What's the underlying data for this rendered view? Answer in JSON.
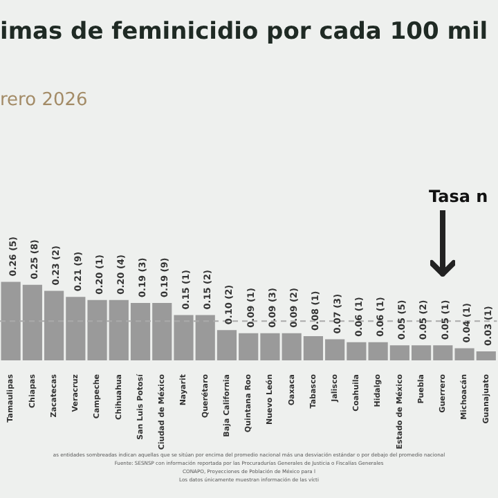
{
  "chart_data": {
    "type": "bar",
    "title": "imas de feminicidio por cada 100 mil",
    "subtitle": "rero 2026",
    "categories": [
      "Tamaulipas",
      "Chiapas",
      "Zacatecas",
      "Veracruz",
      "Campeche",
      "Chihuahua",
      "San Luis Potosí",
      "Ciudad de México",
      "Nayarit",
      "Querétaro",
      "Baja California",
      "Quintana Roo",
      "Nuevo León",
      "Oaxaca",
      "Tabasco",
      "Jalisco",
      "Coahuila",
      "Hidalgo",
      "Estado de México",
      "Puebla",
      "Guerrero",
      "Michoacán",
      "Guanajuato"
    ],
    "values": [
      0.26,
      0.25,
      0.23,
      0.21,
      0.2,
      0.2,
      0.19,
      0.19,
      0.15,
      0.15,
      0.1,
      0.09,
      0.09,
      0.09,
      0.08,
      0.07,
      0.06,
      0.06,
      0.05,
      0.05,
      0.05,
      0.04,
      0.03
    ],
    "value_labels": [
      "0.26 (5)",
      "0.25 (8)",
      "0.23 (2)",
      "0.21 (9)",
      "0.20 (1)",
      "0.20 (4)",
      "0.19 (3)",
      "0.19 (9)",
      "0.15 (1)",
      "0.15 (2)",
      "0.10 (2)",
      "0.09 (1)",
      "0.09 (3)",
      "0.09 (2)",
      "0.08 (1)",
      "0.07 (3)",
      "0.06 (1)",
      "0.06 (1)",
      "0.05 (5)",
      "0.05 (2)",
      "0.05 (1)",
      "0.04 (1)",
      "0.03 (1)"
    ],
    "color": "#9a9a9a",
    "ref_lines": [
      {
        "axis": "y",
        "value": 0.13,
        "color": "#aaaaaa",
        "line_style": "dashed"
      }
    ],
    "annotations": [
      "Tasa n",
      "as entidades sombreadas indican aquellas que se sitúan por encima del promedio nacional más una desviación estándar o por debajo del promedio nacional",
      "Fuente: SESNSP con información reportada por las Procuradurías Generales de Justicia o Fiscalías Generales",
      "CONAPO, Proyecciones de Población de México para l",
      "Los datos únicamente muestran información de las vícti"
    ],
    "grid": false,
    "legend": false
  }
}
